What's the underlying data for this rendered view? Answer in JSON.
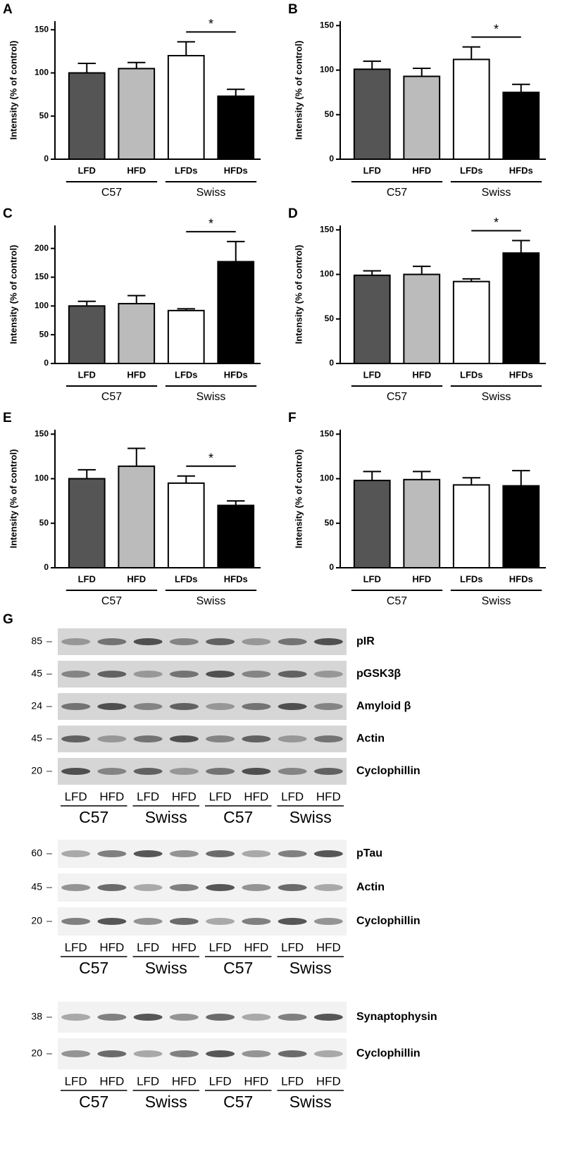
{
  "chart_data": [
    {
      "type": "bar",
      "panel": "A",
      "ylabel": "Intensity (% of control)",
      "categories": [
        "LFD",
        "HFD",
        "LFDs",
        "HFDs"
      ],
      "values": [
        100,
        105,
        120,
        73
      ],
      "errors": [
        11,
        7,
        16,
        8
      ],
      "colors": [
        "#555555",
        "#bbbbbb",
        "#ffffff",
        "#000000"
      ],
      "groups": [
        "C57",
        "Swiss"
      ],
      "significance_label": "*",
      "ylim": [
        0,
        160
      ],
      "yticks": [
        0,
        50,
        100,
        150
      ]
    },
    {
      "type": "bar",
      "panel": "B",
      "ylabel": "Intensity (% of control)",
      "categories": [
        "LFD",
        "HFD",
        "LFDs",
        "HFDs"
      ],
      "values": [
        101,
        93,
        112,
        75
      ],
      "errors": [
        9,
        9,
        14,
        9
      ],
      "colors": [
        "#555555",
        "#bbbbbb",
        "#ffffff",
        "#000000"
      ],
      "groups": [
        "C57",
        "Swiss"
      ],
      "significance_label": "*",
      "ylim": [
        0,
        155
      ],
      "yticks": [
        0,
        50,
        100,
        150
      ]
    },
    {
      "type": "bar",
      "panel": "C",
      "ylabel": "Intensity (% of control)",
      "categories": [
        "LFD",
        "HFD",
        "LFDs",
        "HFDs"
      ],
      "values": [
        100,
        104,
        92,
        177
      ],
      "errors": [
        8,
        14,
        3,
        35
      ],
      "colors": [
        "#555555",
        "#bbbbbb",
        "#ffffff",
        "#000000"
      ],
      "groups": [
        "C57",
        "Swiss"
      ],
      "significance_label": "*",
      "ylim": [
        0,
        240
      ],
      "yticks": [
        0,
        50,
        100,
        150,
        200
      ]
    },
    {
      "type": "bar",
      "panel": "D",
      "ylabel": "Intensity (% of control)",
      "categories": [
        "LFD",
        "HFD",
        "LFDs",
        "HFDs"
      ],
      "values": [
        99,
        100,
        92,
        124
      ],
      "errors": [
        5,
        9,
        3,
        14
      ],
      "colors": [
        "#555555",
        "#bbbbbb",
        "#ffffff",
        "#000000"
      ],
      "groups": [
        "C57",
        "Swiss"
      ],
      "significance_label": "*",
      "ylim": [
        0,
        155
      ],
      "yticks": [
        0,
        50,
        100,
        150
      ]
    },
    {
      "type": "bar",
      "panel": "E",
      "ylabel": "Intensity (% of control)",
      "categories": [
        "LFD",
        "HFD",
        "LFDs",
        "HFDs"
      ],
      "values": [
        100,
        114,
        95,
        70
      ],
      "errors": [
        10,
        20,
        8,
        5
      ],
      "colors": [
        "#555555",
        "#bbbbbb",
        "#ffffff",
        "#000000"
      ],
      "groups": [
        "C57",
        "Swiss"
      ],
      "significance_label": "*",
      "ylim": [
        0,
        155
      ],
      "yticks": [
        0,
        50,
        100,
        150
      ]
    },
    {
      "type": "bar",
      "panel": "F",
      "ylabel": "Intensity (% of control)",
      "categories": [
        "LFD",
        "HFD",
        "LFDs",
        "HFDs"
      ],
      "values": [
        98,
        99,
        93,
        92
      ],
      "errors": [
        10,
        9,
        8,
        17
      ],
      "colors": [
        "#555555",
        "#bbbbbb",
        "#ffffff",
        "#000000"
      ],
      "groups": [
        "C57",
        "Swiss"
      ],
      "ylim": [
        0,
        155
      ],
      "yticks": [
        0,
        50,
        100,
        150
      ]
    }
  ],
  "panel_g": {
    "label": "G",
    "blocks": [
      {
        "rows": [
          {
            "marker": "85",
            "name": "pIR"
          },
          {
            "marker": "45",
            "name": "pGSK3β"
          },
          {
            "marker": "24",
            "name": "Amyloid β"
          },
          {
            "marker": "45",
            "name": "Actin"
          },
          {
            "marker": "20",
            "name": "Cyclophillin"
          }
        ],
        "lanes": [
          "LFD",
          "HFD",
          "LFD",
          "HFD",
          "LFD",
          "HFD",
          "LFD",
          "HFD"
        ],
        "groups": [
          "C57",
          "Swiss",
          "C57",
          "Swiss"
        ]
      },
      {
        "rows": [
          {
            "marker": "60",
            "name": "pTau"
          },
          {
            "marker": "45",
            "name": "Actin"
          },
          {
            "marker": "20",
            "name": "Cyclophillin"
          }
        ],
        "lanes": [
          "LFD",
          "HFD",
          "LFD",
          "HFD",
          "LFD",
          "HFD",
          "LFD",
          "HFD"
        ],
        "groups": [
          "C57",
          "Swiss",
          "C57",
          "Swiss"
        ]
      },
      {
        "rows": [
          {
            "marker": "38",
            "name": "Synaptophysin"
          },
          {
            "marker": "20",
            "name": "Cyclophillin"
          }
        ],
        "lanes": [
          "LFD",
          "HFD",
          "LFD",
          "HFD",
          "LFD",
          "HFD",
          "LFD",
          "HFD"
        ],
        "groups": [
          "C57",
          "Swiss",
          "C57",
          "Swiss"
        ]
      }
    ]
  }
}
